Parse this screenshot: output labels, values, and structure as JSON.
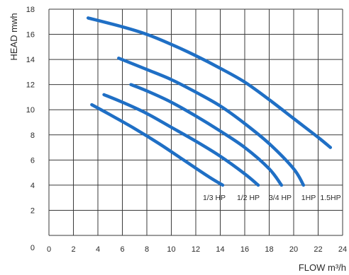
{
  "chart_data": {
    "type": "line",
    "xlabel": "FLOW m³/h",
    "ylabel": "HEAD mwh",
    "xlim": [
      0,
      24
    ],
    "ylim": [
      0,
      18
    ],
    "x_ticks": [
      "0",
      "2",
      "4",
      "6",
      "8",
      "10",
      "12",
      "14",
      "16",
      "18",
      "20",
      "22",
      "24"
    ],
    "y_ticks": [
      "0",
      "2",
      "4",
      "6",
      "8",
      "10",
      "12",
      "14",
      "16",
      "18"
    ],
    "grid": true,
    "series": [
      {
        "name": "1/3 HP",
        "x": [
          3.5,
          5,
          7,
          9,
          11,
          13,
          14.2
        ],
        "y": [
          10.4,
          9.6,
          8.5,
          7.3,
          6.0,
          4.7,
          4.0
        ]
      },
      {
        "name": "1/2 HP",
        "x": [
          4.5,
          6,
          8,
          10,
          12,
          14,
          16,
          17.1
        ],
        "y": [
          11.2,
          10.6,
          9.7,
          8.6,
          7.5,
          6.3,
          4.9,
          4.0
        ]
      },
      {
        "name": "3/4 HP",
        "x": [
          6.7,
          8,
          10,
          12,
          14,
          16,
          18,
          19.0
        ],
        "y": [
          12.0,
          11.5,
          10.6,
          9.5,
          8.3,
          7.0,
          5.3,
          4.0
        ]
      },
      {
        "name": "1HP",
        "x": [
          5.7,
          8,
          10,
          12,
          14,
          16,
          18,
          20,
          20.8
        ],
        "y": [
          14.1,
          13.2,
          12.4,
          11.4,
          10.3,
          8.9,
          7.3,
          5.3,
          4.0
        ]
      },
      {
        "name": "1.5HP",
        "x": [
          3.2,
          6,
          8,
          10,
          12,
          14,
          16,
          18,
          20,
          22,
          23.0
        ],
        "y": [
          17.3,
          16.6,
          16.0,
          15.2,
          14.3,
          13.3,
          12.2,
          10.8,
          9.3,
          7.8,
          7.0
        ]
      }
    ]
  }
}
